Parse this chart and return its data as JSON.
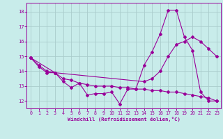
{
  "xlabel": "Windchill (Refroidissement éolien,°C)",
  "bg_color": "#c8ecea",
  "line_color": "#990099",
  "grid_color": "#aacccc",
  "xlim": [
    -0.5,
    23.5
  ],
  "ylim": [
    11.5,
    18.6
  ],
  "xticks": [
    0,
    1,
    2,
    3,
    4,
    5,
    6,
    7,
    8,
    9,
    10,
    11,
    12,
    13,
    14,
    15,
    16,
    17,
    18,
    19,
    20,
    21,
    22,
    23
  ],
  "yticks": [
    12,
    13,
    14,
    15,
    16,
    17,
    18
  ],
  "series1_x": [
    0,
    1,
    2,
    3,
    4,
    5,
    6,
    7,
    8,
    9,
    10,
    11,
    12,
    13,
    14,
    15,
    16,
    17,
    18,
    19,
    20,
    21,
    22,
    23
  ],
  "series1_y": [
    14.9,
    14.3,
    13.9,
    13.9,
    13.3,
    12.9,
    13.2,
    12.4,
    12.5,
    12.5,
    12.6,
    11.8,
    12.8,
    12.8,
    14.4,
    15.3,
    16.5,
    18.1,
    18.1,
    16.3,
    15.4,
    12.6,
    12.0,
    12.0
  ],
  "series2_x": [
    0,
    3,
    14,
    15,
    16,
    17,
    18,
    19,
    20,
    21,
    22,
    23
  ],
  "series2_y": [
    14.9,
    13.9,
    13.3,
    13.5,
    14.0,
    15.0,
    15.8,
    16.0,
    16.3,
    16.0,
    15.5,
    15.0
  ],
  "series3_x": [
    0,
    1,
    2,
    3,
    4,
    5,
    6,
    7,
    8,
    9,
    10,
    11,
    12,
    13,
    14,
    15,
    16,
    17,
    18,
    19,
    20,
    21,
    22,
    23
  ],
  "series3_y": [
    14.9,
    14.4,
    14.0,
    13.9,
    13.5,
    13.4,
    13.2,
    13.1,
    13.0,
    13.0,
    13.0,
    12.9,
    12.9,
    12.8,
    12.8,
    12.7,
    12.7,
    12.6,
    12.6,
    12.5,
    12.4,
    12.3,
    12.2,
    12.0
  ]
}
